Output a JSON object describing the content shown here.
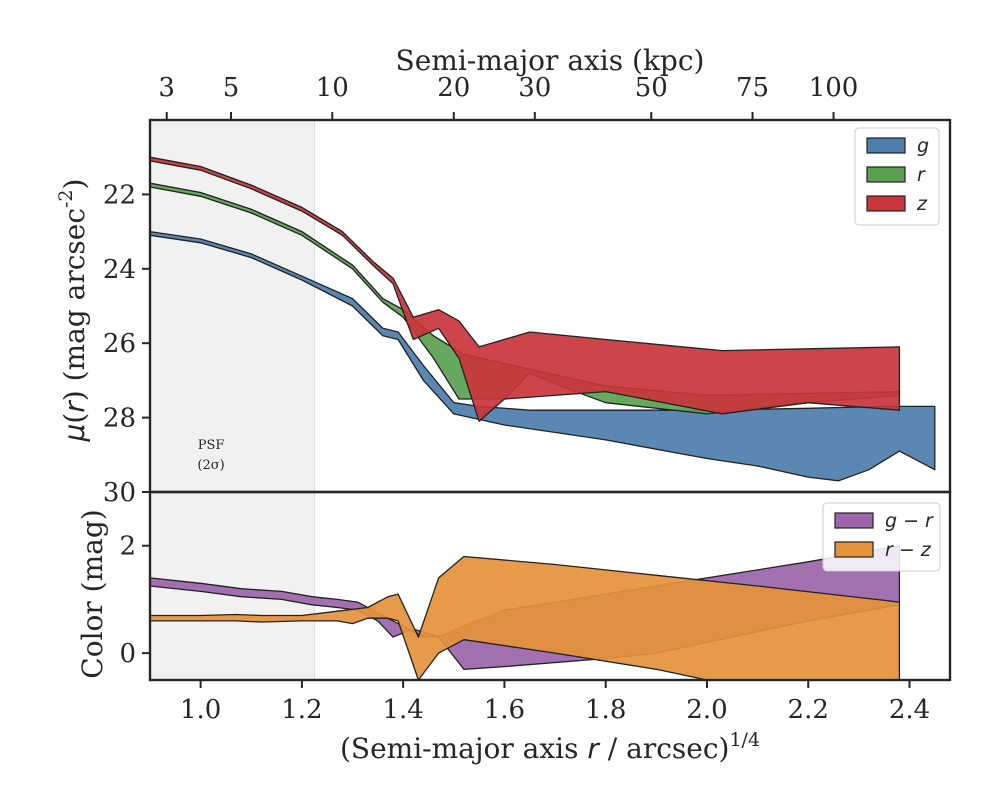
{
  "chart_data": [
    {
      "type": "area",
      "panel": "surface-brightness",
      "xlabel": "(Semi-major axis r / arcsec)^1/4",
      "ylabel": "μ(r) (mag arcsec^-2)",
      "xlim": [
        0.9,
        2.48
      ],
      "ylim": [
        30,
        20
      ],
      "y_inverted": true,
      "yticks": [
        22,
        24,
        26,
        28,
        30
      ],
      "top_axis": {
        "label": "Semi-major axis (kpc)",
        "ticks": [
          {
            "label": "3",
            "x": 0.933
          },
          {
            "label": "5",
            "x": 1.06
          },
          {
            "label": "10",
            "x": 1.26
          },
          {
            "label": "20",
            "x": 1.5
          },
          {
            "label": "30",
            "x": 1.66
          },
          {
            "label": "50",
            "x": 1.89
          },
          {
            "label": "75",
            "x": 2.09
          },
          {
            "label": "100",
            "x": 2.25
          }
        ]
      },
      "shaded_region": {
        "x": [
          0.9,
          1.225
        ],
        "label_line1": "PSF",
        "label_line2": "(2σ)"
      },
      "legend": {
        "position": "upper right"
      },
      "series": [
        {
          "name": "g",
          "color": "#4c7ead",
          "upper": [
            [
              0.9,
              23.0
            ],
            [
              1.0,
              23.2
            ],
            [
              1.1,
              23.6
            ],
            [
              1.2,
              24.2
            ],
            [
              1.3,
              24.8
            ],
            [
              1.36,
              25.6
            ],
            [
              1.39,
              25.7
            ],
            [
              1.44,
              26.6
            ],
            [
              1.5,
              27.6
            ],
            [
              1.55,
              27.7
            ],
            [
              1.65,
              27.8
            ],
            [
              1.8,
              27.8
            ],
            [
              2.0,
              27.8
            ],
            [
              2.2,
              27.75
            ],
            [
              2.35,
              27.7
            ],
            [
              2.45,
              27.7
            ]
          ],
          "lower": [
            [
              0.9,
              23.1
            ],
            [
              1.0,
              23.3
            ],
            [
              1.1,
              23.7
            ],
            [
              1.2,
              24.3
            ],
            [
              1.3,
              25.0
            ],
            [
              1.36,
              25.8
            ],
            [
              1.39,
              25.9
            ],
            [
              1.44,
              27.0
            ],
            [
              1.5,
              27.9
            ],
            [
              1.6,
              28.2
            ],
            [
              1.8,
              28.6
            ],
            [
              2.0,
              29.1
            ],
            [
              2.1,
              29.3
            ],
            [
              2.2,
              29.6
            ],
            [
              2.26,
              29.7
            ],
            [
              2.32,
              29.4
            ],
            [
              2.38,
              28.9
            ],
            [
              2.45,
              29.4
            ]
          ]
        },
        {
          "name": "r",
          "color": "#59a14f",
          "upper": [
            [
              0.9,
              21.7
            ],
            [
              1.0,
              21.95
            ],
            [
              1.1,
              22.4
            ],
            [
              1.2,
              23.0
            ],
            [
              1.3,
              23.9
            ],
            [
              1.36,
              24.8
            ],
            [
              1.4,
              25.1
            ],
            [
              1.46,
              25.8
            ],
            [
              1.52,
              26.3
            ],
            [
              1.65,
              26.7
            ],
            [
              1.8,
              27.15
            ],
            [
              2.0,
              27.4
            ],
            [
              2.2,
              27.35
            ],
            [
              2.38,
              27.3
            ]
          ],
          "lower": [
            [
              0.9,
              21.8
            ],
            [
              1.0,
              22.05
            ],
            [
              1.1,
              22.5
            ],
            [
              1.2,
              23.1
            ],
            [
              1.3,
              24.0
            ],
            [
              1.36,
              24.9
            ],
            [
              1.4,
              25.3
            ],
            [
              1.46,
              26.4
            ],
            [
              1.51,
              27.5
            ],
            [
              1.6,
              27.5
            ],
            [
              1.65,
              26.8
            ],
            [
              1.72,
              27.2
            ],
            [
              1.8,
              27.6
            ],
            [
              2.0,
              27.9
            ],
            [
              2.2,
              27.6
            ],
            [
              2.38,
              27.4
            ]
          ]
        },
        {
          "name": "z",
          "color": "#c9353b",
          "upper": [
            [
              0.9,
              21.0
            ],
            [
              1.0,
              21.25
            ],
            [
              1.1,
              21.75
            ],
            [
              1.2,
              22.35
            ],
            [
              1.28,
              23.0
            ],
            [
              1.34,
              23.8
            ],
            [
              1.38,
              24.25
            ],
            [
              1.42,
              25.3
            ],
            [
              1.47,
              25.1
            ],
            [
              1.51,
              25.4
            ],
            [
              1.55,
              26.1
            ],
            [
              1.65,
              25.7
            ],
            [
              1.8,
              25.9
            ],
            [
              2.03,
              26.2
            ],
            [
              2.2,
              26.15
            ],
            [
              2.38,
              26.1
            ]
          ],
          "lower": [
            [
              0.9,
              21.1
            ],
            [
              1.0,
              21.35
            ],
            [
              1.1,
              21.85
            ],
            [
              1.2,
              22.45
            ],
            [
              1.28,
              23.1
            ],
            [
              1.34,
              23.9
            ],
            [
              1.38,
              24.4
            ],
            [
              1.42,
              25.9
            ],
            [
              1.47,
              25.6
            ],
            [
              1.51,
              26.4
            ],
            [
              1.55,
              28.1
            ],
            [
              1.6,
              27.5
            ],
            [
              1.8,
              27.3
            ],
            [
              2.03,
              27.9
            ],
            [
              2.2,
              27.6
            ],
            [
              2.38,
              27.8
            ]
          ]
        }
      ]
    },
    {
      "type": "area",
      "panel": "color-profile",
      "xlabel": "(Semi-major axis r / arcsec)^1/4",
      "ylabel": "Color (mag)",
      "xlim": [
        0.9,
        2.48
      ],
      "ylim": [
        -0.5,
        3.0
      ],
      "xticks": [
        "1.0",
        "1.2",
        "1.4",
        "1.6",
        "1.8",
        "2.0",
        "2.2",
        "2.4"
      ],
      "yticks": [
        0,
        2
      ],
      "legend": {
        "position": "upper right"
      },
      "series": [
        {
          "name": "g − r",
          "color": "#9b64ab",
          "upper": [
            [
              0.9,
              1.4
            ],
            [
              1.0,
              1.3
            ],
            [
              1.08,
              1.2
            ],
            [
              1.16,
              1.15
            ],
            [
              1.22,
              1.05
            ],
            [
              1.27,
              1.0
            ],
            [
              1.31,
              0.95
            ],
            [
              1.35,
              0.75
            ],
            [
              1.38,
              0.6
            ],
            [
              1.44,
              0.3
            ],
            [
              1.47,
              0.3
            ],
            [
              1.52,
              0.5
            ],
            [
              1.6,
              0.8
            ],
            [
              1.8,
              1.1
            ],
            [
              2.0,
              1.4
            ],
            [
              2.2,
              1.7
            ],
            [
              2.38,
              2.0
            ]
          ],
          "lower": [
            [
              0.9,
              1.25
            ],
            [
              1.0,
              1.15
            ],
            [
              1.08,
              1.05
            ],
            [
              1.16,
              1.0
            ],
            [
              1.22,
              0.9
            ],
            [
              1.27,
              0.85
            ],
            [
              1.31,
              0.8
            ],
            [
              1.35,
              0.6
            ],
            [
              1.38,
              0.3
            ],
            [
              1.42,
              0.45
            ],
            [
              1.47,
              0.3
            ],
            [
              1.52,
              -0.3
            ],
            [
              1.6,
              -0.25
            ],
            [
              1.8,
              -0.1
            ],
            [
              1.9,
              0.0
            ],
            [
              2.0,
              0.2
            ],
            [
              2.2,
              0.6
            ],
            [
              2.38,
              0.9
            ]
          ]
        },
        {
          "name": "r − z",
          "color": "#e4923b",
          "upper": [
            [
              0.9,
              0.7
            ],
            [
              1.0,
              0.7
            ],
            [
              1.07,
              0.72
            ],
            [
              1.12,
              0.7
            ],
            [
              1.2,
              0.7
            ],
            [
              1.27,
              0.78
            ],
            [
              1.33,
              0.85
            ],
            [
              1.37,
              1.05
            ],
            [
              1.39,
              1.1
            ],
            [
              1.43,
              0.3
            ],
            [
              1.47,
              1.4
            ],
            [
              1.52,
              1.8
            ],
            [
              1.7,
              1.65
            ],
            [
              1.9,
              1.45
            ],
            [
              2.1,
              1.25
            ],
            [
              2.38,
              0.95
            ]
          ],
          "lower": [
            [
              0.9,
              0.6
            ],
            [
              1.0,
              0.6
            ],
            [
              1.07,
              0.6
            ],
            [
              1.12,
              0.58
            ],
            [
              1.2,
              0.6
            ],
            [
              1.27,
              0.6
            ],
            [
              1.3,
              0.55
            ],
            [
              1.33,
              0.65
            ],
            [
              1.37,
              0.65
            ],
            [
              1.39,
              0.6
            ],
            [
              1.43,
              -0.5
            ],
            [
              1.47,
              0.0
            ],
            [
              1.52,
              0.25
            ],
            [
              1.7,
              0.0
            ],
            [
              1.9,
              -0.3
            ],
            [
              2.0,
              -0.5
            ],
            [
              2.1,
              -0.6
            ],
            [
              2.38,
              -0.5
            ]
          ]
        }
      ]
    }
  ]
}
